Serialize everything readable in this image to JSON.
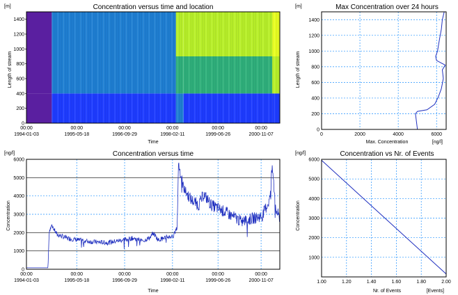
{
  "chart_data": [
    {
      "id": "heatmap",
      "type": "heatmap",
      "title": "Concentration versus time and location",
      "xlabel": "Time",
      "ylabel": "Length of stream",
      "yunit": "[m]",
      "ylim": [
        0,
        1500
      ],
      "yticks": [
        "0",
        "200",
        "400",
        "600",
        "800",
        "1000",
        "1200",
        "1400"
      ],
      "xticks_top": [
        "00:00",
        "00:00",
        "00:00",
        "00:00",
        "00:00",
        "00:00"
      ],
      "xticks_bottom": [
        "1994-01-03",
        "1995-05-18",
        "1996-09-29",
        "1998-02-11",
        "1999-06-26",
        "2000-11-07"
      ],
      "colors": {
        "low": "#5a1fa0",
        "mid_low": "#1e3cff",
        "mid": "#1f7fd2",
        "mid_high": "#2fb07a",
        "high": "#b8f028",
        "peak": "#e8ff20"
      },
      "cells": [
        {
          "t0": 0.0,
          "t1": 0.1,
          "bands": [
            "low",
            "low",
            "low"
          ]
        },
        {
          "t0": 0.1,
          "t1": 0.59,
          "bands": [
            "mid_low",
            "mid",
            "mid"
          ]
        },
        {
          "t0": 0.59,
          "t1": 0.62,
          "bands": [
            "mid",
            "mid_high",
            "high"
          ]
        },
        {
          "t0": 0.62,
          "t1": 0.97,
          "bands": [
            "mid_low",
            "mid_high",
            "high"
          ]
        },
        {
          "t0": 0.97,
          "t1": 1.0,
          "bands": [
            "mid_low",
            "high",
            "peak"
          ]
        }
      ],
      "band_edges_m": [
        0,
        400,
        900,
        1500
      ]
    },
    {
      "id": "maxconc",
      "type": "line",
      "title": "Max Concentration over 24 hours",
      "xlabel": "Max. Concentration",
      "ylabel": "Length of stream",
      "yunit": "[m]",
      "xunit": "[ng/l]",
      "xlim": [
        0,
        6500
      ],
      "ylim": [
        0,
        1500
      ],
      "xticks": [
        "0",
        "2000",
        "4000",
        "6000"
      ],
      "yticks": [
        "0",
        "200",
        "400",
        "600",
        "800",
        "1000",
        "1200",
        "1400"
      ],
      "series": [
        {
          "color": "#1f2fbf",
          "points": [
            [
              5000,
              0
            ],
            [
              4950,
              100
            ],
            [
              4900,
              200
            ],
            [
              5000,
              230
            ],
            [
              5500,
              250
            ],
            [
              5900,
              320
            ],
            [
              6100,
              420
            ],
            [
              6250,
              520
            ],
            [
              6350,
              650
            ],
            [
              6300,
              760
            ],
            [
              6450,
              820
            ],
            [
              6000,
              880
            ],
            [
              5950,
              930
            ],
            [
              6050,
              1000
            ],
            [
              6150,
              1150
            ],
            [
              6250,
              1280
            ],
            [
              6300,
              1400
            ],
            [
              6400,
              1500
            ]
          ]
        }
      ]
    },
    {
      "id": "conctime",
      "type": "line",
      "title": "Concentration versus time",
      "xlabel": "Time",
      "ylabel": "Concentration",
      "yunit": "[ng/l]",
      "ylim": [
        0,
        6000
      ],
      "yticks": [
        "0",
        "1000",
        "2000",
        "3000",
        "4000",
        "5000",
        "6000"
      ],
      "xticks_top": [
        "00:00",
        "00:00",
        "00:00",
        "00:00",
        "00:00",
        "00:00"
      ],
      "xticks_bottom": [
        "1994-01-03",
        "1995-05-18",
        "1996-09-29",
        "1998-02-11",
        "1999-06-26",
        "2000-11-07"
      ],
      "reference_lines": [
        1000,
        2000,
        5000
      ],
      "series": [
        {
          "color": "#1f2fbf",
          "keypoints": [
            [
              0.0,
              80
            ],
            [
              0.085,
              80
            ],
            [
              0.09,
              2100
            ],
            [
              0.1,
              2400
            ],
            [
              0.12,
              1900
            ],
            [
              0.16,
              1700
            ],
            [
              0.2,
              1600
            ],
            [
              0.26,
              1500
            ],
            [
              0.32,
              1450
            ],
            [
              0.38,
              1600
            ],
            [
              0.42,
              1700
            ],
            [
              0.46,
              1550
            ],
            [
              0.49,
              1750
            ],
            [
              0.5,
              2000
            ],
            [
              0.52,
              1600
            ],
            [
              0.55,
              1750
            ],
            [
              0.58,
              1800
            ],
            [
              0.595,
              2300
            ],
            [
              0.6,
              5800
            ],
            [
              0.62,
              4400
            ],
            [
              0.65,
              3800
            ],
            [
              0.68,
              3500
            ],
            [
              0.7,
              4100
            ],
            [
              0.73,
              3500
            ],
            [
              0.76,
              3300
            ],
            [
              0.8,
              3000
            ],
            [
              0.85,
              2600
            ],
            [
              0.9,
              2800
            ],
            [
              0.93,
              2900
            ],
            [
              0.96,
              3800
            ],
            [
              0.97,
              5600
            ],
            [
              0.985,
              3200
            ],
            [
              1.0,
              2800
            ]
          ]
        }
      ]
    },
    {
      "id": "events",
      "type": "line",
      "title": "Concentration vs Nr. of Events",
      "xlabel": "Nr. of Events",
      "ylabel": "Concentration",
      "yunit": "[ng/l]",
      "xunit": "[Events]",
      "xlim": [
        1.0,
        2.0
      ],
      "ylim": [
        0,
        6000
      ],
      "xticks": [
        "1.00",
        "1.20",
        "1.40",
        "1.60",
        "1.80",
        "2.00"
      ],
      "yticks": [
        "1000",
        "2000",
        "3000",
        "4000",
        "5000",
        "6000"
      ],
      "series": [
        {
          "color": "#1f2fbf",
          "points": [
            [
              1.0,
              5950
            ],
            [
              2.0,
              150
            ]
          ]
        }
      ]
    }
  ]
}
